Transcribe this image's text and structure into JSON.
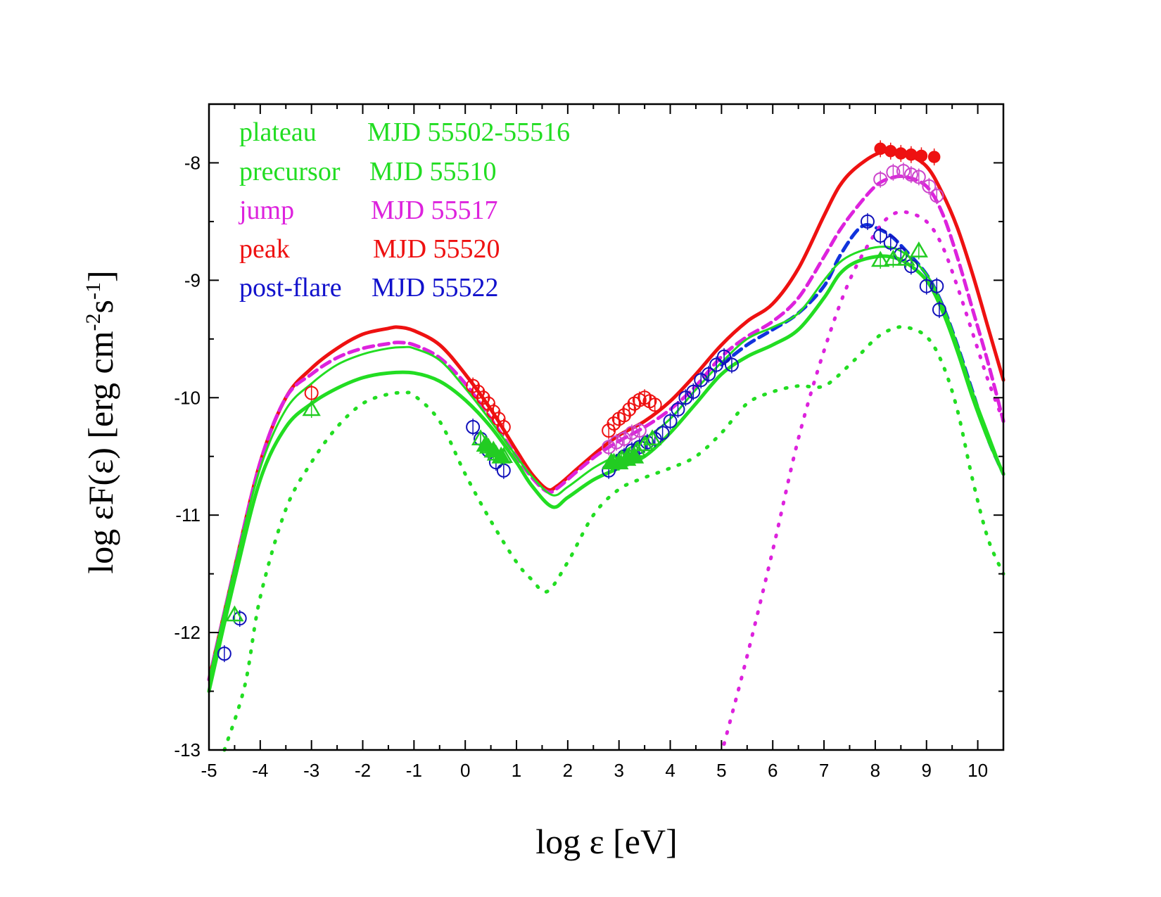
{
  "chart_data": {
    "type": "line",
    "title": "",
    "xlabel": "log ε [eV]",
    "ylabel_parts": [
      "log εF(ε) [erg cm",
      "-2",
      "s",
      "-1",
      "]"
    ],
    "xlim": [
      -5,
      10.5
    ],
    "ylim": [
      -13,
      -7.5
    ],
    "xticks": [
      -5,
      -4,
      -3,
      -2,
      -1,
      0,
      1,
      2,
      3,
      4,
      5,
      6,
      7,
      8,
      9,
      10
    ],
    "yticks": [
      -8,
      -9,
      -10,
      -11,
      -12,
      -13
    ],
    "legend": [
      {
        "state": "plateau",
        "mjd": "MJD 55502-55516",
        "color": "#22dd22"
      },
      {
        "state": "precursor",
        "mjd": "MJD 55510",
        "color": "#22dd22"
      },
      {
        "state": "jump",
        "mjd": "MJD 55517",
        "color": "#dd22dd"
      },
      {
        "state": "peak",
        "mjd": "MJD 55520",
        "color": "#ee1111"
      },
      {
        "state": "post-flare",
        "mjd": "MJD 55522",
        "color": "#1111cc"
      }
    ],
    "model_curves": [
      {
        "name": "peak model",
        "color": "#ee1111",
        "style": "solid",
        "width": 5,
        "x": [
          -5,
          -4.5,
          -4,
          -3.5,
          -3,
          -2.5,
          -2,
          -1.5,
          -1.3,
          -1,
          -0.5,
          0,
          0.5,
          1,
          1.3,
          1.6,
          1.8,
          2.2,
          2.6,
          3,
          3.5,
          4,
          4.5,
          5,
          5.5,
          6,
          6.5,
          7,
          7.3,
          7.6,
          8,
          8.3,
          8.6,
          9,
          9.3,
          9.6,
          9.9,
          10.2,
          10.5
        ],
        "y": [
          -12.4,
          -11.45,
          -10.55,
          -10.0,
          -9.75,
          -9.58,
          -9.46,
          -9.41,
          -9.4,
          -9.43,
          -9.55,
          -9.8,
          -10.1,
          -10.45,
          -10.65,
          -10.78,
          -10.75,
          -10.6,
          -10.45,
          -10.32,
          -10.2,
          -10.03,
          -9.8,
          -9.55,
          -9.35,
          -9.2,
          -8.9,
          -8.45,
          -8.2,
          -8.05,
          -7.93,
          -7.9,
          -7.92,
          -8.03,
          -8.25,
          -8.55,
          -8.95,
          -9.4,
          -9.85
        ]
      },
      {
        "name": "jump model",
        "color": "#dd22dd",
        "style": "dashed",
        "width": 5,
        "x": [
          -5,
          -4.5,
          -4,
          -3.5,
          -3,
          -2.5,
          -2,
          -1.5,
          -1.3,
          -1,
          -0.5,
          0,
          0.5,
          1,
          1.3,
          1.6,
          1.8,
          2.2,
          2.6,
          3,
          3.5,
          4,
          4.5,
          5,
          5.5,
          6,
          6.5,
          7,
          7.3,
          7.6,
          8,
          8.3,
          8.6,
          9,
          9.3,
          9.6,
          9.9,
          10.2,
          10.5
        ],
        "y": [
          -12.4,
          -11.45,
          -10.55,
          -10.0,
          -9.8,
          -9.66,
          -9.58,
          -9.54,
          -9.53,
          -9.55,
          -9.66,
          -9.88,
          -10.18,
          -10.5,
          -10.68,
          -10.8,
          -10.77,
          -10.62,
          -10.48,
          -10.37,
          -10.25,
          -10.1,
          -9.9,
          -9.65,
          -9.48,
          -9.35,
          -9.15,
          -8.8,
          -8.58,
          -8.4,
          -8.2,
          -8.13,
          -8.12,
          -8.2,
          -8.42,
          -8.8,
          -9.25,
          -9.7,
          -10.2
        ]
      },
      {
        "name": "post-flare model",
        "color": "#1133dd",
        "style": "dashed",
        "width": 5,
        "x": [
          5,
          5.5,
          6,
          6.5,
          7,
          7.3,
          7.6,
          7.8,
          8,
          8.3,
          8.6,
          9,
          9.3,
          9.6,
          9.9,
          10.2,
          10.5
        ],
        "y": [
          -9.72,
          -9.55,
          -9.42,
          -9.28,
          -9.05,
          -8.8,
          -8.6,
          -8.53,
          -8.55,
          -8.62,
          -8.75,
          -8.95,
          -9.2,
          -9.55,
          -9.95,
          -10.35,
          -10.65
        ]
      },
      {
        "name": "plateau model",
        "color": "#22dd22",
        "style": "solid",
        "width": 5,
        "x": [
          -5,
          -4.5,
          -4,
          -3.5,
          -3,
          -2.5,
          -2,
          -1.5,
          -1,
          -0.5,
          0,
          0.5,
          1,
          1.3,
          1.7,
          2,
          2.5,
          3,
          3.5,
          4,
          4.5,
          5,
          5.5,
          6,
          6.5,
          7,
          7.3,
          7.6,
          8,
          8.3,
          8.6,
          9,
          9.3,
          9.6,
          9.9,
          10.2,
          10.5
        ],
        "y": [
          -12.5,
          -11.55,
          -10.7,
          -10.25,
          -10.05,
          -9.92,
          -9.83,
          -9.79,
          -9.79,
          -9.86,
          -10.02,
          -10.25,
          -10.55,
          -10.75,
          -10.93,
          -10.85,
          -10.7,
          -10.6,
          -10.5,
          -10.3,
          -10.05,
          -9.8,
          -9.65,
          -9.55,
          -9.42,
          -9.15,
          -8.95,
          -8.85,
          -8.8,
          -8.8,
          -8.85,
          -9.0,
          -9.25,
          -9.6,
          -10.0,
          -10.35,
          -10.65
        ]
      },
      {
        "name": "precursor model",
        "color": "#22dd22",
        "style": "solid",
        "width": 3,
        "x": [
          -5,
          -4.5,
          -4,
          -3.5,
          -3,
          -2.5,
          -2,
          -1.5,
          -1.2,
          -1,
          -0.5,
          0,
          0.5,
          1,
          1.3,
          1.7,
          2,
          2.5,
          3,
          3.5,
          4,
          4.5,
          5,
          5.5,
          6,
          6.5,
          7,
          7.3,
          7.6,
          8,
          8.3,
          8.6,
          9,
          9.3,
          9.6,
          9.9,
          10.2,
          10.5
        ],
        "y": [
          -12.4,
          -11.45,
          -10.6,
          -10.1,
          -9.88,
          -9.72,
          -9.63,
          -9.58,
          -9.57,
          -9.58,
          -9.68,
          -9.92,
          -10.2,
          -10.5,
          -10.67,
          -10.83,
          -10.76,
          -10.6,
          -10.48,
          -10.35,
          -10.18,
          -9.93,
          -9.7,
          -9.5,
          -9.4,
          -9.28,
          -9.0,
          -8.85,
          -8.77,
          -8.72,
          -8.72,
          -8.78,
          -8.95,
          -9.2,
          -9.55,
          -9.95,
          -10.3,
          -10.65
        ]
      },
      {
        "name": "component (synchrotron + external Compton)",
        "color": "#22dd22",
        "style": "dotted",
        "width": 5,
        "x": [
          -4.7,
          -4.3,
          -4,
          -3.5,
          -3,
          -2.5,
          -2,
          -1.5,
          -1.2,
          -1,
          -0.5,
          0,
          0.5,
          1,
          1.3,
          1.6,
          2,
          2.5,
          3,
          3.5,
          4,
          4.5,
          5,
          5.5,
          6,
          6.5,
          7,
          7.5,
          8,
          8.3,
          8.6,
          9,
          9.3,
          9.6,
          9.9,
          10.2,
          10.5
        ],
        "y": [
          -13.0,
          -12.45,
          -11.7,
          -10.95,
          -10.55,
          -10.25,
          -10.05,
          -9.97,
          -9.96,
          -9.98,
          -10.2,
          -10.65,
          -11.05,
          -11.4,
          -11.55,
          -11.65,
          -11.4,
          -11.0,
          -10.78,
          -10.68,
          -10.6,
          -10.5,
          -10.3,
          -10.05,
          -9.95,
          -9.9,
          -9.9,
          -9.72,
          -9.5,
          -9.42,
          -9.4,
          -9.48,
          -9.7,
          -10.1,
          -10.7,
          -11.2,
          -11.5
        ]
      },
      {
        "name": "component (jump, high-energy)",
        "color": "#dd22dd",
        "style": "dotted",
        "width": 5,
        "x": [
          5.05,
          5.5,
          6,
          6.5,
          7,
          7.5,
          8,
          8.3,
          8.6,
          9,
          9.3,
          9.6,
          9.9,
          10.2,
          10.5
        ],
        "y": [
          -12.95,
          -12.2,
          -11.3,
          -10.35,
          -9.6,
          -9.0,
          -8.6,
          -8.45,
          -8.42,
          -8.5,
          -8.7,
          -9.05,
          -9.45,
          -9.85,
          -10.2
        ]
      }
    ],
    "data_points": [
      {
        "series": "peak",
        "color": "#ee1111",
        "marker": "open-circle",
        "points": [
          [
            -3,
            -9.96
          ],
          [
            0.15,
            -9.9
          ],
          [
            0.25,
            -9.95
          ],
          [
            0.35,
            -10.0
          ],
          [
            0.45,
            -10.05
          ],
          [
            0.55,
            -10.12
          ],
          [
            0.65,
            -10.18
          ],
          [
            0.75,
            -10.25
          ],
          [
            2.8,
            -10.28
          ],
          [
            2.9,
            -10.22
          ],
          [
            3.0,
            -10.18
          ],
          [
            3.1,
            -10.15
          ],
          [
            3.2,
            -10.1
          ],
          [
            3.3,
            -10.05
          ],
          [
            3.4,
            -10.02
          ],
          [
            3.5,
            -10.0
          ],
          [
            3.6,
            -10.03
          ],
          [
            3.7,
            -10.06
          ]
        ]
      },
      {
        "series": "peak",
        "color": "#ee1111",
        "marker": "filled-circle",
        "points": [
          [
            8.1,
            -7.88
          ],
          [
            8.3,
            -7.9
          ],
          [
            8.5,
            -7.92
          ],
          [
            8.7,
            -7.93
          ],
          [
            8.9,
            -7.94
          ],
          [
            9.15,
            -7.95
          ]
        ]
      },
      {
        "series": "jump",
        "color": "#cc44cc",
        "marker": "open-circle",
        "points": [
          [
            2.8,
            -10.42
          ],
          [
            2.95,
            -10.38
          ],
          [
            3.1,
            -10.35
          ],
          [
            3.25,
            -10.3
          ],
          [
            3.4,
            -10.28
          ],
          [
            8.1,
            -8.14
          ],
          [
            8.35,
            -8.08
          ],
          [
            8.55,
            -8.07
          ],
          [
            8.7,
            -8.1
          ],
          [
            8.85,
            -8.12
          ],
          [
            9.05,
            -8.2
          ],
          [
            9.2,
            -8.28
          ]
        ]
      },
      {
        "series": "post-flare",
        "color": "#1111bb",
        "marker": "open-circle",
        "points": [
          [
            -4.7,
            -12.18
          ],
          [
            -4.4,
            -11.88
          ],
          [
            0.15,
            -10.25
          ],
          [
            0.3,
            -10.35
          ],
          [
            0.45,
            -10.45
          ],
          [
            0.6,
            -10.55
          ],
          [
            0.75,
            -10.62
          ],
          [
            2.8,
            -10.62
          ],
          [
            2.95,
            -10.55
          ],
          [
            3.1,
            -10.5
          ],
          [
            3.25,
            -10.45
          ],
          [
            3.4,
            -10.42
          ],
          [
            3.55,
            -10.38
          ],
          [
            3.7,
            -10.35
          ],
          [
            3.85,
            -10.3
          ],
          [
            4.0,
            -10.2
          ],
          [
            4.15,
            -10.1
          ],
          [
            4.3,
            -10.0
          ],
          [
            4.45,
            -9.95
          ],
          [
            4.6,
            -9.85
          ],
          [
            4.75,
            -9.8
          ],
          [
            4.9,
            -9.72
          ],
          [
            5.05,
            -9.65
          ],
          [
            5.2,
            -9.72
          ],
          [
            7.85,
            -8.5
          ],
          [
            8.1,
            -8.62
          ],
          [
            8.3,
            -8.68
          ],
          [
            8.5,
            -8.78
          ],
          [
            8.7,
            -8.88
          ],
          [
            9.0,
            -9.05
          ],
          [
            9.2,
            -9.05
          ],
          [
            9.25,
            -9.25
          ]
        ]
      },
      {
        "series": "plateau",
        "color": "#22cc22",
        "marker": "open-triangle",
        "points": [
          [
            -4.5,
            -11.85
          ],
          [
            -3.0,
            -10.1
          ],
          [
            0.3,
            -10.35
          ],
          [
            0.45,
            -10.42
          ],
          [
            0.6,
            -10.48
          ],
          [
            0.75,
            -10.5
          ],
          [
            2.9,
            -10.55
          ],
          [
            3.05,
            -10.52
          ],
          [
            3.2,
            -10.5
          ],
          [
            3.35,
            -10.45
          ],
          [
            3.5,
            -10.4
          ],
          [
            3.65,
            -10.35
          ],
          [
            8.1,
            -8.83
          ],
          [
            8.35,
            -8.82
          ],
          [
            8.6,
            -8.82
          ],
          [
            8.85,
            -8.75
          ]
        ]
      },
      {
        "series": "precursor",
        "color": "#22cc22",
        "marker": "filled-triangle",
        "points": [
          [
            0.4,
            -10.4
          ],
          [
            0.55,
            -10.45
          ],
          [
            0.7,
            -10.5
          ],
          [
            2.85,
            -10.55
          ],
          [
            3.0,
            -10.55
          ],
          [
            3.15,
            -10.52
          ],
          [
            3.3,
            -10.5
          ]
        ]
      }
    ]
  }
}
